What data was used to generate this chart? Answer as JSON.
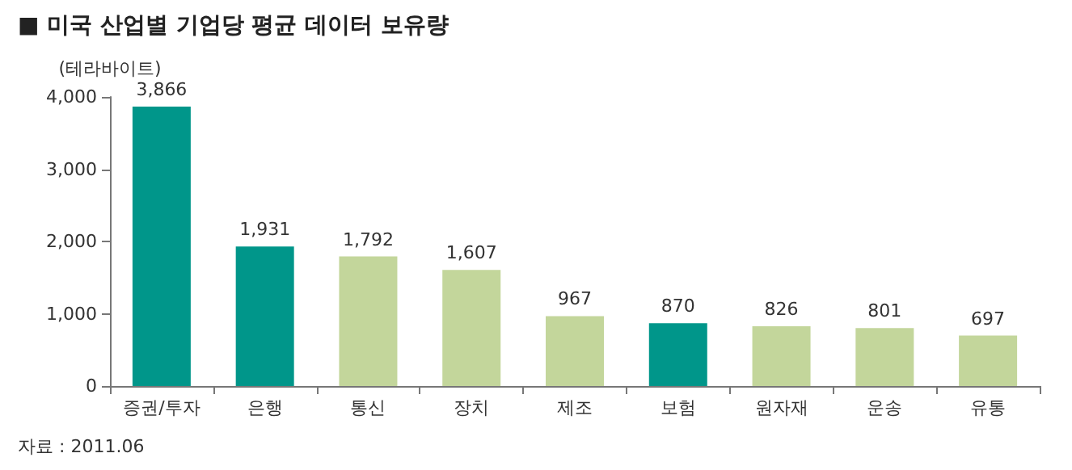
{
  "chart_data": {
    "type": "bar",
    "title": "■ 미국 산업별 기업당 평균 데이터 보유량",
    "ylabel": "(테라바이트)",
    "categories": [
      "증권/투자",
      "은행",
      "통신",
      "장치",
      "제조",
      "보험",
      "원자재",
      "운송",
      "유통"
    ],
    "values": [
      3866,
      1931,
      1792,
      1607,
      967,
      870,
      826,
      801,
      697
    ],
    "colors": [
      "#00968a",
      "#00968a",
      "#c3d69b",
      "#c3d69b",
      "#c3d69b",
      "#00968a",
      "#c3d69b",
      "#c3d69b",
      "#c3d69b"
    ],
    "value_labels": [
      "3,866",
      "1,931",
      "1,792",
      "1,607",
      "967",
      "870",
      "826",
      "801",
      "697"
    ],
    "ylim": [
      0,
      4000
    ],
    "yticks": [
      0,
      {
        "value": 1000,
        "label": "1,000"
      },
      {
        "value": 2000,
        "label": "2,000"
      },
      {
        "value": 3000,
        "label": "3,000"
      },
      {
        "value": 4000,
        "label": "4,000"
      }
    ],
    "grid": false,
    "annotations": [
      "자료 : 2011.06"
    ]
  }
}
